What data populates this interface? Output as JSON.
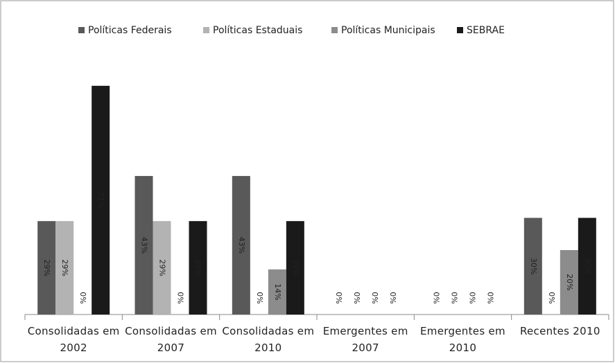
{
  "chart_data": {
    "type": "bar",
    "categories": [
      "Consolidadas em 2002",
      "Consolidadas em 2007",
      "Consolidadas em 2010",
      "Emergentes em 2007",
      "Emergentes em 2010",
      "Recentes 2010"
    ],
    "series": [
      {
        "name": "Políticas Federais",
        "color": "#595959",
        "values": [
          29,
          43,
          43,
          0,
          0,
          30
        ],
        "value_labels": [
          "29%",
          "43%",
          "43%",
          "0%",
          "0%",
          "30%"
        ]
      },
      {
        "name": "Políticas Estaduais",
        "color": "#b3b3b3",
        "values": [
          29,
          29,
          0,
          0,
          0,
          0
        ],
        "value_labels": [
          "29%",
          "29%",
          "0%",
          "0%",
          "0%",
          "0%"
        ]
      },
      {
        "name": "Políticas Municipais",
        "color": "#8c8c8c",
        "values": [
          0,
          0,
          14,
          0,
          0,
          20
        ],
        "value_labels": [
          "0%",
          "0%",
          "14%",
          "0%",
          "0%",
          "20%"
        ]
      },
      {
        "name": "SEBRAE",
        "color": "#1a1a1a",
        "values": [
          71,
          29,
          29,
          0,
          0,
          30
        ],
        "value_labels": [
          "71%",
          "29%",
          "29%",
          "0%",
          "0%",
          "30%"
        ]
      }
    ],
    "ylim": [
      0,
      80
    ],
    "legend": "top"
  }
}
